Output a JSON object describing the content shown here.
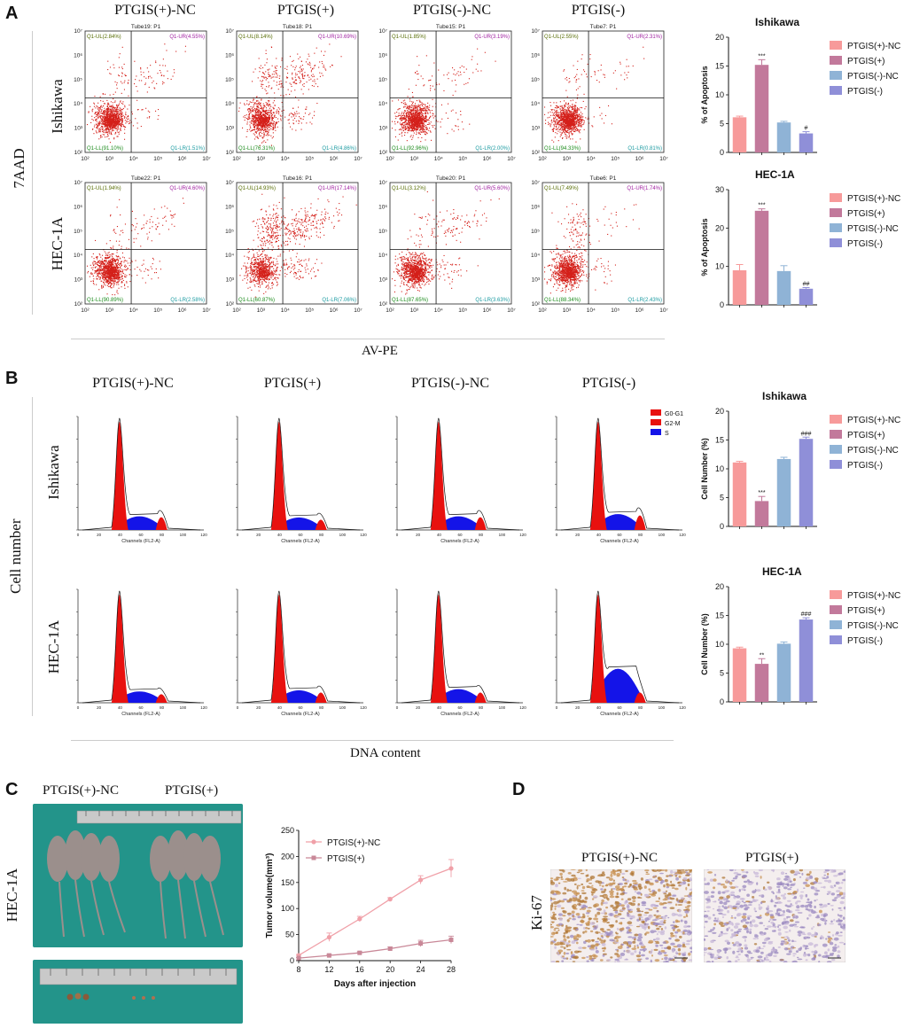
{
  "panels": {
    "A": "A",
    "B": "B",
    "C": "C",
    "D": "D"
  },
  "groups": [
    "PTGIS(+)-NC",
    "PTGIS(+)",
    "PTGIS(-)-NC",
    "PTGIS(-)"
  ],
  "cell_lines": [
    "Ishikawa",
    "HEC-1A"
  ],
  "panelA": {
    "y_axis_label": "7AAD",
    "x_axis_label": "AV-PE",
    "flow_plots": [
      {
        "tube": "Tube19: P1",
        "ul": "Q1-UL(2.84%)",
        "ur": "Q1-UR(4.55%)",
        "ll": "Q1-LL(91.10%)",
        "lr": "Q1-LR(1.51%)"
      },
      {
        "tube": "Tube18: P1",
        "ul": "Q1-UL(8.14%)",
        "ur": "Q1-UR(10.69%)",
        "ll": "Q1-LL(76.31%)",
        "lr": "Q1-LR(4.86%)"
      },
      {
        "tube": "Tube15: P1",
        "ul": "Q1-UL(1.85%)",
        "ur": "Q1-UR(3.19%)",
        "ll": "Q1-LL(92.96%)",
        "lr": "Q1-LR(2.00%)"
      },
      {
        "tube": "Tube7: P1",
        "ul": "Q1-UL(2.55%)",
        "ur": "Q1-UR(2.31%)",
        "ll": "Q1-LL(94.33%)",
        "lr": "Q1-LR(0.81%)"
      },
      {
        "tube": "Tube22: P1",
        "ul": "Q1-UL(1.94%)",
        "ur": "Q1-UR(4.60%)",
        "ll": "Q1-LL(90.89%)",
        "lr": "Q1-LR(2.58%)"
      },
      {
        "tube": "Tube16: P1",
        "ul": "Q1-UL(14.93%)",
        "ur": "Q1-UR(17.14%)",
        "ll": "Q1-LL(60.87%)",
        "lr": "Q1-LR(7.06%)"
      },
      {
        "tube": "Tube20: P1",
        "ul": "Q1-UL(3.12%)",
        "ur": "Q1-UR(5.60%)",
        "ll": "Q1-LL(87.65%)",
        "lr": "Q1-LR(3.63%)"
      },
      {
        "tube": "Tube6: P1",
        "ul": "Q1-UL(7.49%)",
        "ur": "Q1-UR(1.74%)",
        "ll": "Q1-LL(88.34%)",
        "lr": "Q1-LR(2.43%)"
      }
    ],
    "flow_ticks": [
      "10²",
      "10³",
      "10⁴",
      "10⁵",
      "10⁶",
      "10⁷"
    ]
  },
  "panelB": {
    "y_axis_label": "Cell number",
    "x_axis_label": "DNA content",
    "legend": [
      "G0-G1",
      "G2-M",
      "S"
    ],
    "x_axis_caption": "Channels (FL2-A)",
    "ticks": [
      "0",
      "20",
      "40",
      "60",
      "80",
      "100",
      "120"
    ]
  },
  "panelC": {
    "mouse_labels": [
      "PTGIS(+)-NC",
      "PTGIS(+)"
    ],
    "row_label": "HEC-1A"
  },
  "panelD": {
    "titles": [
      "PTGIS(+)-NC",
      "PTGIS(+)"
    ],
    "row_label": "Ki-67"
  },
  "colors": {
    "PTGIS(+)-NC": "#f79a9a",
    "PTGIS(+)": "#c2799b",
    "PTGIS(-)-NC": "#8fb3d6",
    "PTGIS(-)": "#8f8fd8",
    "scatter": "#d4201a",
    "histo_red": "#e8110f",
    "histo_blue": "#1414e8",
    "line_pink": "#f0a0a8",
    "line_mauve": "#c98898",
    "photo_green": "#1f8f85"
  },
  "chart_data": [
    {
      "type": "bar",
      "title": "Ishikawa",
      "ylabel": "% of Apoptosis",
      "categories": [
        "PTGIS(+)-NC",
        "PTGIS(+)",
        "PTGIS(-)-NC",
        "PTGIS(-)"
      ],
      "values": [
        6.1,
        15.2,
        5.2,
        3.3
      ],
      "errors": [
        0.2,
        0.9,
        0.2,
        0.3
      ],
      "annotations": [
        "",
        "***",
        "",
        "#"
      ],
      "ylim": [
        0,
        20
      ],
      "yticks": [
        0,
        5,
        10,
        15,
        20
      ],
      "legend": "right"
    },
    {
      "type": "bar",
      "title": "HEC-1A",
      "ylabel": "% of Apoptosis",
      "categories": [
        "PTGIS(+)-NC",
        "PTGIS(+)",
        "PTGIS(-)-NC",
        "PTGIS(-)"
      ],
      "values": [
        9.0,
        24.5,
        8.8,
        4.2
      ],
      "errors": [
        1.5,
        0.5,
        1.4,
        0.3
      ],
      "annotations": [
        "",
        "***",
        "",
        "##"
      ],
      "ylim": [
        0,
        30
      ],
      "yticks": [
        0,
        10,
        20,
        30
      ],
      "legend": "right"
    },
    {
      "type": "bar",
      "title": "Ishikawa",
      "ylabel": "Cell Number (%)",
      "categories": [
        "PTGIS(+)-NC",
        "PTGIS(+)",
        "PTGIS(-)-NC",
        "PTGIS(-)"
      ],
      "values": [
        11.1,
        4.4,
        11.7,
        15.2
      ],
      "errors": [
        0.2,
        0.8,
        0.3,
        0.3
      ],
      "annotations": [
        "",
        "***",
        "",
        "###"
      ],
      "ylim": [
        0,
        20
      ],
      "yticks": [
        0,
        5,
        10,
        15,
        20
      ],
      "legend": "right"
    },
    {
      "type": "bar",
      "title": "HEC-1A",
      "ylabel": "Cell Number (%)",
      "categories": [
        "PTGIS(+)-NC",
        "PTGIS(+)",
        "PTGIS(-)-NC",
        "PTGIS(-)"
      ],
      "values": [
        9.3,
        6.6,
        10.1,
        14.3
      ],
      "errors": [
        0.2,
        0.9,
        0.3,
        0.3
      ],
      "annotations": [
        "",
        "**",
        "",
        "###"
      ],
      "ylim": [
        0,
        20
      ],
      "yticks": [
        0,
        5,
        10,
        15,
        20
      ],
      "legend": "right"
    },
    {
      "type": "line",
      "title": "",
      "xlabel": "Days after injection",
      "ylabel": "Tumor volume(mm³)",
      "x": [
        8,
        12,
        16,
        20,
        24,
        28
      ],
      "series": [
        {
          "name": "PTGIS(+)-NC",
          "values": [
            10,
            45,
            80,
            118,
            155,
            177
          ],
          "errors": [
            2,
            8,
            5,
            3,
            8,
            17
          ]
        },
        {
          "name": "PTGIS(+)",
          "values": [
            5,
            10,
            15,
            23,
            33,
            40
          ],
          "errors": [
            1,
            2,
            2,
            3,
            6,
            7
          ]
        }
      ],
      "xticks": [
        8,
        12,
        16,
        20,
        24,
        28
      ],
      "yticks": [
        0,
        50,
        100,
        150,
        200,
        250
      ],
      "ylim": [
        0,
        250
      ],
      "legend": "top-left"
    }
  ]
}
